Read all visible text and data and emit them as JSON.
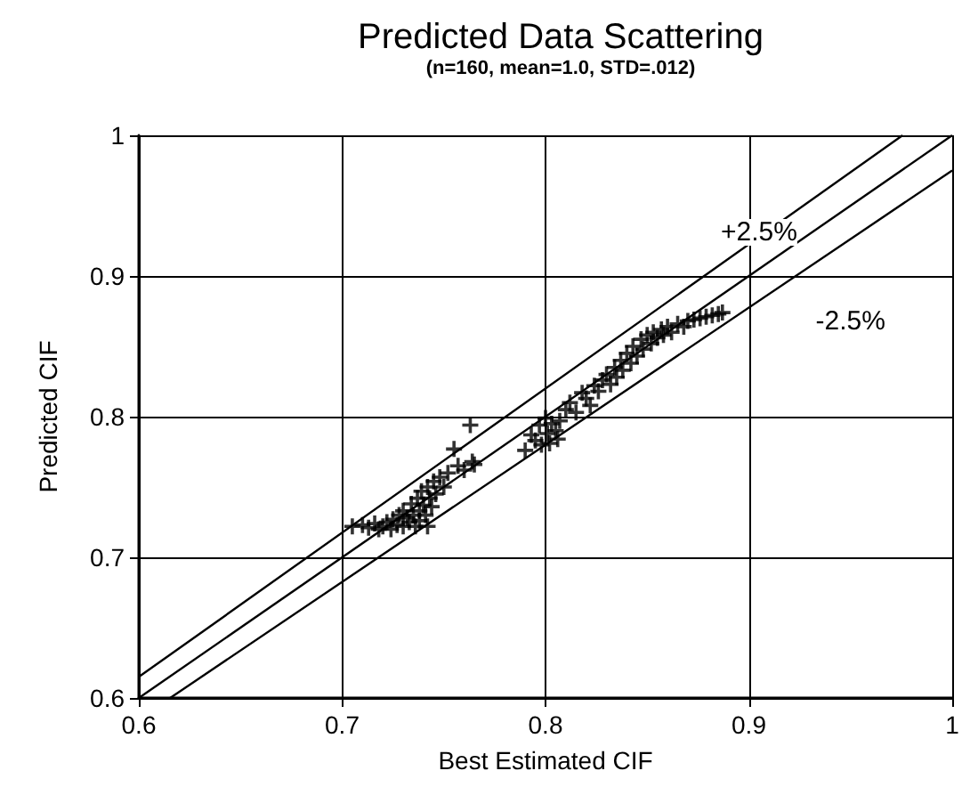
{
  "chart_data": {
    "type": "scatter",
    "title": "Predicted Data Scattering",
    "subtitle": "(n=160, mean=1.0, STD=.012)",
    "xlabel": "Best Estimated CIF",
    "ylabel": "Predicted CIF",
    "xlim": [
      0.6,
      1
    ],
    "ylim": [
      0.6,
      1
    ],
    "xticks": [
      0.6,
      0.7,
      0.8,
      0.9,
      1
    ],
    "yticks": [
      0.6,
      0.7,
      0.8,
      0.9,
      1
    ],
    "grid": true,
    "series": [
      {
        "color": "#000000",
        "marker": "cross",
        "x": [
          0.705,
          0.71,
          0.713,
          0.716,
          0.718,
          0.72,
          0.722,
          0.724,
          0.725,
          0.727,
          0.728,
          0.73,
          0.73,
          0.732,
          0.733,
          0.734,
          0.735,
          0.736,
          0.737,
          0.738,
          0.738,
          0.739,
          0.74,
          0.741,
          0.742,
          0.742,
          0.743,
          0.744,
          0.745,
          0.746,
          0.748,
          0.75,
          0.752,
          0.755,
          0.757,
          0.76,
          0.763,
          0.764,
          0.765,
          0.79,
          0.793,
          0.795,
          0.797,
          0.798,
          0.8,
          0.801,
          0.802,
          0.803,
          0.805,
          0.806,
          0.807,
          0.81,
          0.812,
          0.815,
          0.818,
          0.82,
          0.822,
          0.824,
          0.826,
          0.828,
          0.83,
          0.832,
          0.834,
          0.835,
          0.837,
          0.838,
          0.84,
          0.842,
          0.843,
          0.845,
          0.847,
          0.848,
          0.85,
          0.852,
          0.853,
          0.855,
          0.857,
          0.858,
          0.86,
          0.862,
          0.865,
          0.868,
          0.87,
          0.873,
          0.876,
          0.879,
          0.882,
          0.885,
          0.887
        ],
        "values": [
          0.722,
          0.723,
          0.721,
          0.724,
          0.72,
          0.722,
          0.725,
          0.72,
          0.727,
          0.723,
          0.73,
          0.722,
          0.733,
          0.728,
          0.725,
          0.738,
          0.73,
          0.722,
          0.742,
          0.733,
          0.726,
          0.747,
          0.737,
          0.73,
          0.75,
          0.722,
          0.742,
          0.736,
          0.754,
          0.745,
          0.757,
          0.75,
          0.76,
          0.777,
          0.765,
          0.762,
          0.794,
          0.768,
          0.766,
          0.776,
          0.787,
          0.783,
          0.794,
          0.78,
          0.799,
          0.788,
          0.781,
          0.795,
          0.79,
          0.784,
          0.797,
          0.805,
          0.81,
          0.803,
          0.817,
          0.813,
          0.808,
          0.822,
          0.818,
          0.826,
          0.83,
          0.823,
          0.835,
          0.828,
          0.84,
          0.833,
          0.845,
          0.838,
          0.85,
          0.843,
          0.855,
          0.848,
          0.858,
          0.852,
          0.86,
          0.856,
          0.862,
          0.858,
          0.864,
          0.86,
          0.866,
          0.864,
          0.868,
          0.869,
          0.87,
          0.871,
          0.872,
          0.873,
          0.874
        ]
      },
      {
        "type": "line",
        "marker": "none",
        "color": "#000000",
        "x": [
          0.6,
          1
        ],
        "values": [
          0.6,
          1
        ]
      },
      {
        "type": "line",
        "marker": "none",
        "color": "#000000",
        "x": [
          0.6,
          0.9756
        ],
        "values": [
          0.615,
          1
        ]
      },
      {
        "type": "line",
        "marker": "none",
        "color": "#000000",
        "x": [
          0.6154,
          1
        ],
        "values": [
          0.6,
          0.975
        ]
      }
    ],
    "annotations": [
      {
        "text": "+2.5%",
        "x": 0.905,
        "y": 0.931
      },
      {
        "text": "-2.5%",
        "x": 0.95,
        "y": 0.868
      }
    ]
  }
}
